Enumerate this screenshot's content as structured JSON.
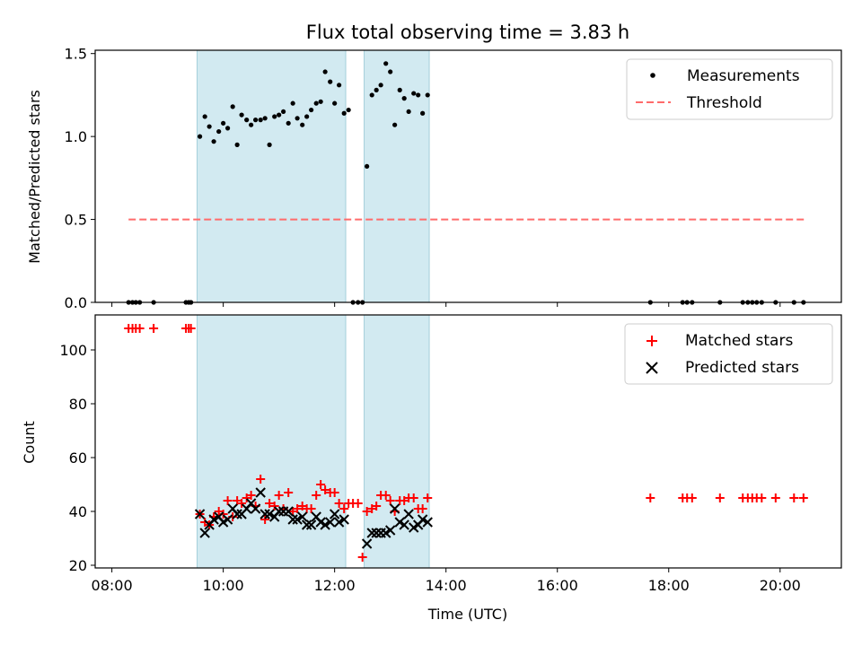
{
  "chart_data": [
    {
      "type": "scatter",
      "title": "Flux total observing time = 3.83 h",
      "xlabel": "",
      "ylabel": "Matched/Predicted stars",
      "xlim": [
        7.7,
        21.1
      ],
      "ylim": [
        0,
        1.52
      ],
      "yticks": [
        0.0,
        0.5,
        1.0,
        1.5
      ],
      "ytick_labels": [
        "0.0",
        "0.5",
        "1.0",
        "1.5"
      ],
      "xticks": [
        8,
        10,
        12,
        14,
        16,
        18,
        20
      ],
      "shaded_spans": [
        [
          9.53,
          12.2
        ],
        [
          12.53,
          13.7
        ]
      ],
      "shade_color": "#add8e6",
      "legend": {
        "position": "top-right",
        "entries": [
          "Measurements",
          "Threshold"
        ]
      },
      "threshold": {
        "name": "Threshold",
        "y": 0.5,
        "x_range": [
          8.3,
          20.45
        ],
        "color": "#ff6b6b"
      },
      "series": [
        {
          "name": "Measurements",
          "color": "#000000",
          "x": [
            8.3,
            8.37,
            8.43,
            8.5,
            8.75,
            9.33,
            9.38,
            9.42,
            9.58,
            9.67,
            9.75,
            9.83,
            9.92,
            10.0,
            10.08,
            10.17,
            10.25,
            10.33,
            10.42,
            10.5,
            10.58,
            10.67,
            10.75,
            10.83,
            10.92,
            11.0,
            11.08,
            11.17,
            11.25,
            11.33,
            11.42,
            11.5,
            11.58,
            11.67,
            11.75,
            11.83,
            11.92,
            12.0,
            12.08,
            12.17,
            12.25,
            12.33,
            12.42,
            12.5,
            12.58,
            12.67,
            12.75,
            12.83,
            12.92,
            13.0,
            13.08,
            13.17,
            13.25,
            13.33,
            13.42,
            13.5,
            13.58,
            13.67,
            17.67,
            18.25,
            18.33,
            18.42,
            18.92,
            19.33,
            19.42,
            19.5,
            19.58,
            19.67,
            19.92,
            20.25,
            20.42
          ],
          "y": [
            0,
            0,
            0,
            0,
            0,
            0,
            0,
            0,
            1.0,
            1.12,
            1.06,
            0.97,
            1.03,
            1.08,
            1.05,
            1.18,
            0.95,
            1.13,
            1.1,
            1.07,
            1.1,
            1.1,
            1.11,
            0.95,
            1.12,
            1.13,
            1.15,
            1.08,
            1.2,
            1.11,
            1.07,
            1.12,
            1.16,
            1.2,
            1.21,
            1.39,
            1.33,
            1.2,
            1.31,
            1.14,
            1.16,
            0,
            0,
            0,
            0.82,
            1.25,
            1.28,
            1.31,
            1.44,
            1.39,
            1.07,
            1.28,
            1.23,
            1.15,
            1.26,
            1.25,
            1.14,
            1.25,
            0,
            0,
            0,
            0,
            0,
            0,
            0,
            0,
            0,
            0,
            0,
            0,
            0
          ]
        }
      ]
    },
    {
      "type": "scatter",
      "title": "",
      "xlabel": "Time (UTC)",
      "ylabel": "Count",
      "xlim": [
        7.7,
        21.1
      ],
      "ylim": [
        19,
        113
      ],
      "yticks": [
        20,
        40,
        60,
        80,
        100
      ],
      "ytick_labels": [
        "20",
        "40",
        "60",
        "80",
        "100"
      ],
      "xticks": [
        8,
        10,
        12,
        14,
        16,
        18,
        20
      ],
      "xtick_labels": [
        "08:00",
        "10:00",
        "12:00",
        "14:00",
        "16:00",
        "18:00",
        "20:00"
      ],
      "shaded_spans": [
        [
          9.53,
          12.2
        ],
        [
          12.53,
          13.7
        ]
      ],
      "shade_color": "#add8e6",
      "legend": {
        "position": "top-right",
        "entries": [
          "Matched stars",
          "Predicted stars"
        ]
      },
      "series": [
        {
          "name": "Matched stars",
          "marker": "plus",
          "color": "#ff0000",
          "x": [
            8.3,
            8.37,
            8.43,
            8.5,
            8.75,
            9.33,
            9.38,
            9.42,
            9.58,
            9.67,
            9.75,
            9.83,
            9.92,
            10.0,
            10.08,
            10.17,
            10.25,
            10.33,
            10.42,
            10.5,
            10.58,
            10.67,
            10.75,
            10.83,
            10.92,
            11.0,
            11.08,
            11.17,
            11.25,
            11.33,
            11.42,
            11.5,
            11.58,
            11.67,
            11.75,
            11.83,
            11.92,
            12.0,
            12.08,
            12.17,
            12.25,
            12.33,
            12.42,
            12.5,
            12.58,
            12.67,
            12.75,
            12.83,
            12.92,
            13.0,
            13.08,
            13.17,
            13.25,
            13.33,
            13.42,
            13.5,
            13.58,
            13.67,
            17.67,
            18.25,
            18.33,
            18.42,
            18.92,
            19.33,
            19.42,
            19.5,
            19.58,
            19.67,
            19.92,
            20.25,
            20.42
          ],
          "y": [
            108,
            108,
            108,
            108,
            108,
            108,
            108,
            108,
            39,
            36,
            35,
            38,
            40,
            39,
            44,
            38,
            44,
            43,
            45,
            46,
            42,
            52,
            37,
            43,
            42,
            46,
            41,
            47,
            40,
            41,
            42,
            41,
            41,
            46,
            50,
            48,
            47,
            47,
            43,
            41,
            43,
            43,
            43,
            23,
            40,
            41,
            42,
            46,
            46,
            44,
            40,
            44,
            44,
            45,
            45,
            41,
            41,
            45,
            45,
            45,
            45,
            45,
            45,
            45,
            45,
            45,
            45,
            45,
            45,
            45,
            45
          ]
        },
        {
          "name": "Predicted stars",
          "marker": "x",
          "color": "#000000",
          "x": [
            9.58,
            9.67,
            9.75,
            9.83,
            9.92,
            10.0,
            10.08,
            10.17,
            10.25,
            10.33,
            10.42,
            10.5,
            10.58,
            10.67,
            10.75,
            10.83,
            10.92,
            11.0,
            11.08,
            11.17,
            11.25,
            11.33,
            11.42,
            11.5,
            11.58,
            11.67,
            11.75,
            11.83,
            11.92,
            12.0,
            12.08,
            12.17,
            12.58,
            12.67,
            12.75,
            12.83,
            12.92,
            13.0,
            13.08,
            13.17,
            13.25,
            13.33,
            13.42,
            13.5,
            13.58,
            13.67
          ],
          "y": [
            39,
            32,
            35,
            37,
            38,
            36,
            37,
            41,
            39,
            39,
            41,
            43,
            41,
            47,
            39,
            39,
            38,
            40,
            40,
            40,
            37,
            37,
            38,
            35,
            35,
            38,
            36,
            35,
            36,
            39,
            36,
            37,
            28,
            32,
            32,
            32,
            32,
            33,
            41,
            36,
            35,
            39,
            34,
            35,
            37,
            36
          ]
        }
      ]
    }
  ]
}
